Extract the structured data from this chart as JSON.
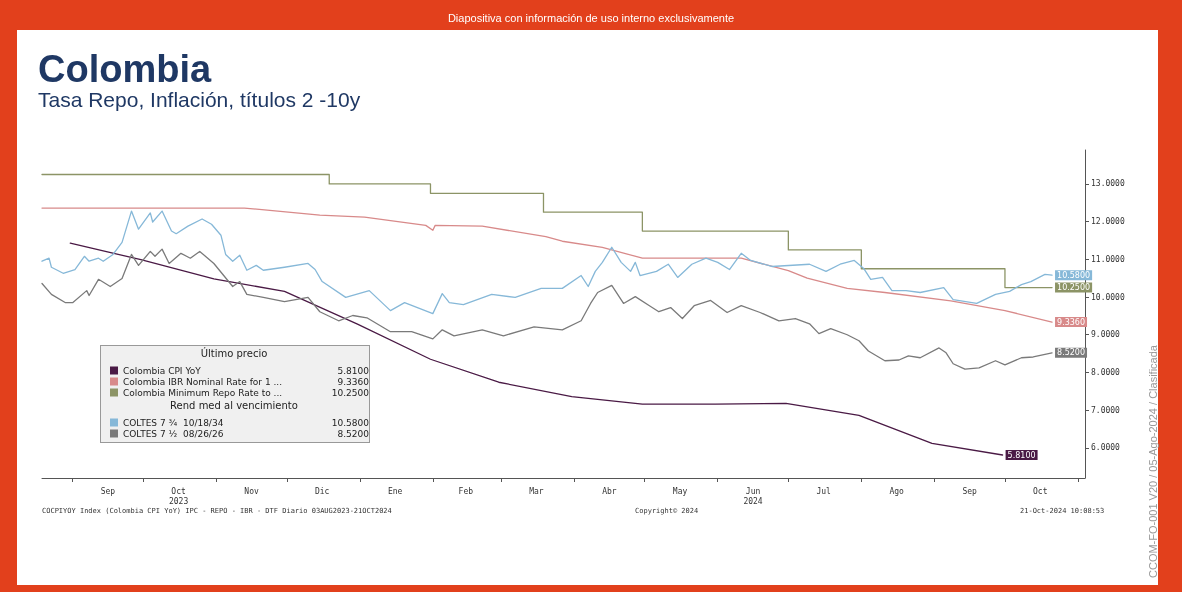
{
  "chart_data": {
    "type": "line",
    "title": "Colombia",
    "subtitle": "Tasa Repo, Inflación, títulos 2 -10y",
    "legend_title": "Último precio",
    "legend": "bottom left",
    "grid": false,
    "marker": "none",
    "line_style": "solid",
    "annotations": [
      "Rend med al vencimiento",
      "COCPIYOY Index (Colombia CPI YoY) IPC - REPO - IBR - DTF  Diario 03AUG2023-21OCT2024",
      "Copyright© 2024",
      "21-Oct-2024 10:08:53",
      "Diapositiva con información de uso interno exclusivamente",
      "CCOM-FO-001 V20 / 05-Ago-2024 / Clasificada"
    ],
    "xlim": [
      "2023-08-19",
      "2024-11-04"
    ],
    "xticks": [
      {
        "value": "2023-09-01",
        "label": null
      },
      {
        "value": "2023-09-16",
        "label": "Sep"
      },
      {
        "value": "2023-10-01",
        "label": null
      },
      {
        "value": "2023-10-16",
        "label": "Oct\n2023"
      },
      {
        "value": "2023-11-01",
        "label": null
      },
      {
        "value": "2023-11-16",
        "label": "Nov"
      },
      {
        "value": "2023-12-01",
        "label": null
      },
      {
        "value": "2023-12-16",
        "label": "Dic"
      },
      {
        "value": "2024-01-01",
        "label": null
      },
      {
        "value": "2024-01-16",
        "label": "Ene"
      },
      {
        "value": "2024-02-01",
        "label": null
      },
      {
        "value": "2024-02-15",
        "label": "Feb"
      },
      {
        "value": "2024-03-01",
        "label": null
      },
      {
        "value": "2024-03-16",
        "label": "Mar"
      },
      {
        "value": "2024-04-01",
        "label": null
      },
      {
        "value": "2024-04-16",
        "label": "Abr"
      },
      {
        "value": "2024-05-01",
        "label": null
      },
      {
        "value": "2024-05-16",
        "label": "May"
      },
      {
        "value": "2024-06-01",
        "label": null
      },
      {
        "value": "2024-06-16",
        "label": "Jun\n2024"
      },
      {
        "value": "2024-07-01",
        "label": null
      },
      {
        "value": "2024-07-16",
        "label": "Jul"
      },
      {
        "value": "2024-08-01",
        "label": null
      },
      {
        "value": "2024-08-16",
        "label": "Ago"
      },
      {
        "value": "2024-09-01",
        "label": null
      },
      {
        "value": "2024-09-16",
        "label": "Sep"
      },
      {
        "value": "2024-10-01",
        "label": null
      },
      {
        "value": "2024-10-16",
        "label": "Oct"
      },
      {
        "value": "2024-11-01",
        "label": null
      }
    ],
    "ylim": [
      5.2,
      13.9
    ],
    "yticks": [
      {
        "value": 6,
        "label": "6.0000"
      },
      {
        "value": 7,
        "label": "7.0000"
      },
      {
        "value": 8,
        "label": "8.0000"
      },
      {
        "value": 9,
        "label": "9.0000"
      },
      {
        "value": 10,
        "label": "10.0000"
      },
      {
        "value": 11,
        "label": "11.0000"
      },
      {
        "value": 12,
        "label": "12.0000"
      },
      {
        "value": 13,
        "label": "13.0000"
      }
    ],
    "series": [
      {
        "name": "Colombia CPI YoY",
        "color": "#4a1a45",
        "x": [
          "2023-08-31",
          "2023-09-30",
          "2023-10-31",
          "2023-11-30",
          "2023-12-31",
          "2024-01-31",
          "2024-02-29",
          "2024-03-31",
          "2024-04-30",
          "2024-05-31",
          "2024-06-30",
          "2024-07-31",
          "2024-08-31",
          "2024-09-30"
        ],
        "values": [
          11.43,
          10.99,
          10.48,
          10.15,
          9.28,
          8.35,
          7.74,
          7.36,
          7.16,
          7.16,
          7.18,
          6.86,
          6.12,
          5.81
        ],
        "value_labels": [
          null,
          null,
          null,
          null,
          null,
          null,
          null,
          null,
          null,
          null,
          null,
          null,
          null,
          "5.8100"
        ]
      },
      {
        "name": "Colombia IBR Nominal Rate for 1 ...",
        "color": "#d88a8a",
        "x": [
          "2023-08-19",
          "2023-11-13",
          "2023-12-15",
          "2024-01-03",
          "2024-01-29",
          "2024-02-01",
          "2024-02-02",
          "2024-02-22",
          "2024-03-20",
          "2024-03-27",
          "2024-04-13",
          "2024-04-30",
          "2024-05-25",
          "2024-06-11",
          "2024-07-01",
          "2024-07-09",
          "2024-07-26",
          "2024-08-11",
          "2024-09-08",
          "2024-10-01",
          "2024-10-21"
        ],
        "values": [
          12.36,
          12.36,
          12.17,
          12.12,
          11.9,
          11.77,
          11.9,
          11.88,
          11.6,
          11.48,
          11.32,
          11.03,
          11.03,
          11.03,
          10.7,
          10.5,
          10.23,
          10.12,
          9.9,
          9.64,
          9.336
        ],
        "value_labels": [
          null,
          null,
          null,
          null,
          null,
          null,
          null,
          null,
          null,
          null,
          null,
          null,
          null,
          null,
          null,
          null,
          null,
          null,
          null,
          null,
          "9.3360"
        ]
      },
      {
        "name": "Colombia Minimum Repo Rate to ...",
        "type": "step",
        "color": "#8c9466",
        "x": [
          "2023-08-19",
          "2023-12-19",
          "2024-01-31",
          "2024-03-19",
          "2024-04-30",
          "2024-07-01",
          "2024-08-01",
          "2024-10-01",
          "2024-10-21"
        ],
        "values": [
          13.25,
          13.0,
          12.75,
          12.25,
          11.75,
          11.25,
          10.75,
          10.25,
          10.25
        ],
        "value_labels": [
          null,
          null,
          null,
          null,
          null,
          null,
          null,
          null,
          "10.2500"
        ]
      },
      {
        "name": "COLTES 7 ¾  10/18/34",
        "color": "#86b8d8",
        "x": [
          "2023-08-19",
          "2023-08-22",
          "2023-08-23",
          "2023-08-28",
          "2023-09-02",
          "2023-09-06",
          "2023-09-08",
          "2023-09-12",
          "2023-09-14",
          "2023-09-18",
          "2023-09-22",
          "2023-09-26",
          "2023-09-29",
          "2023-10-04",
          "2023-10-05",
          "2023-10-09",
          "2023-10-13",
          "2023-10-15",
          "2023-10-20",
          "2023-10-26",
          "2023-10-30",
          "2023-11-03",
          "2023-11-05",
          "2023-11-08",
          "2023-11-11",
          "2023-11-14",
          "2023-11-18",
          "2023-11-21",
          "2023-11-30",
          "2023-12-10",
          "2023-12-13",
          "2023-12-16",
          "2023-12-26",
          "2024-01-05",
          "2024-01-14",
          "2024-01-20",
          "2024-02-01",
          "2024-02-05",
          "2024-02-08",
          "2024-02-14",
          "2024-02-26",
          "2024-03-07",
          "2024-03-18",
          "2024-03-27",
          "2024-04-04",
          "2024-04-07",
          "2024-04-10",
          "2024-04-13",
          "2024-04-17",
          "2024-04-21",
          "2024-04-25",
          "2024-04-27",
          "2024-04-29",
          "2024-05-06",
          "2024-05-11",
          "2024-05-15",
          "2024-05-21",
          "2024-05-27",
          "2024-06-01",
          "2024-06-06",
          "2024-06-11",
          "2024-06-15",
          "2024-06-24",
          "2024-07-10",
          "2024-07-17",
          "2024-07-23",
          "2024-07-29",
          "2024-08-02",
          "2024-08-05",
          "2024-08-10",
          "2024-08-14",
          "2024-08-20",
          "2024-08-26",
          "2024-09-05",
          "2024-09-09",
          "2024-09-19",
          "2024-09-27",
          "2024-10-03",
          "2024-10-08",
          "2024-10-12",
          "2024-10-18",
          "2024-10-21"
        ],
        "values": [
          10.95,
          11.03,
          10.79,
          10.63,
          10.73,
          11.08,
          10.95,
          11.03,
          10.95,
          11.12,
          11.45,
          12.28,
          11.8,
          12.23,
          11.99,
          12.28,
          11.75,
          11.68,
          11.88,
          12.07,
          11.93,
          11.64,
          11.13,
          10.95,
          11.11,
          10.71,
          10.84,
          10.71,
          10.79,
          10.89,
          10.73,
          10.41,
          9.99,
          10.17,
          9.64,
          9.85,
          9.56,
          10.09,
          9.85,
          9.8,
          10.07,
          9.99,
          10.23,
          10.23,
          10.57,
          10.28,
          10.68,
          10.92,
          11.32,
          10.92,
          10.68,
          10.92,
          10.57,
          10.68,
          10.87,
          10.52,
          10.87,
          11.03,
          10.92,
          10.73,
          11.16,
          10.97,
          10.81,
          10.87,
          10.68,
          10.87,
          10.97,
          10.76,
          10.47,
          10.52,
          10.17,
          10.17,
          10.12,
          10.25,
          9.93,
          9.83,
          10.07,
          10.15,
          10.33,
          10.41,
          10.6,
          10.58
        ],
        "value_labels": [
          null,
          null,
          null,
          null,
          null,
          null,
          null,
          null,
          null,
          null,
          null,
          null,
          null,
          null,
          null,
          null,
          null,
          null,
          null,
          null,
          null,
          null,
          null,
          null,
          null,
          null,
          null,
          null,
          null,
          null,
          null,
          null,
          null,
          null,
          null,
          null,
          null,
          null,
          null,
          null,
          null,
          null,
          null,
          null,
          null,
          null,
          null,
          null,
          null,
          null,
          null,
          null,
          null,
          null,
          null,
          null,
          null,
          null,
          null,
          null,
          null,
          null,
          null,
          null,
          null,
          null,
          null,
          null,
          null,
          null,
          null,
          null,
          null,
          null,
          null,
          null,
          null,
          null,
          null,
          null,
          null,
          "10.5800"
        ]
      },
      {
        "name": "COLTES 7 ½  08/26/26",
        "color": "#7a7a7a",
        "x": [
          "2023-08-19",
          "2023-08-23",
          "2023-08-29",
          "2023-09-01",
          "2023-09-07",
          "2023-09-08",
          "2023-09-12",
          "2023-09-17",
          "2023-09-22",
          "2023-09-26",
          "2023-09-29",
          "2023-10-04",
          "2023-10-06",
          "2023-10-09",
          "2023-10-12",
          "2023-10-17",
          "2023-10-21",
          "2023-10-25",
          "2023-10-31",
          "2023-11-08",
          "2023-11-11",
          "2023-11-14",
          "2023-11-21",
          "2023-11-30",
          "2023-12-10",
          "2023-12-15",
          "2023-12-23",
          "2023-12-29",
          "2024-01-04",
          "2024-01-14",
          "2024-01-23",
          "2024-02-01",
          "2024-02-05",
          "2024-02-10",
          "2024-02-22",
          "2024-03-02",
          "2024-03-15",
          "2024-03-27",
          "2024-04-04",
          "2024-04-08",
          "2024-04-11",
          "2024-04-17",
          "2024-04-22",
          "2024-04-27",
          "2024-05-03",
          "2024-05-07",
          "2024-05-12",
          "2024-05-17",
          "2024-05-22",
          "2024-05-29",
          "2024-06-05",
          "2024-06-11",
          "2024-06-19",
          "2024-06-27",
          "2024-07-04",
          "2024-07-10",
          "2024-07-14",
          "2024-07-19",
          "2024-07-26",
          "2024-07-31",
          "2024-08-04",
          "2024-08-11",
          "2024-08-17",
          "2024-08-21",
          "2024-08-26",
          "2024-09-03",
          "2024-09-06",
          "2024-09-09",
          "2024-09-14",
          "2024-09-20",
          "2024-09-27",
          "2024-10-01",
          "2024-10-08",
          "2024-10-13",
          "2024-10-21"
        ],
        "values": [
          10.36,
          10.07,
          9.85,
          9.85,
          10.17,
          10.04,
          10.47,
          10.28,
          10.49,
          11.13,
          10.84,
          11.21,
          11.08,
          11.27,
          10.89,
          11.16,
          11.03,
          11.21,
          10.89,
          10.28,
          10.41,
          10.07,
          9.99,
          9.88,
          9.99,
          9.61,
          9.37,
          9.51,
          9.45,
          9.08,
          9.08,
          8.89,
          9.13,
          8.97,
          9.13,
          8.97,
          9.21,
          9.13,
          9.37,
          9.83,
          10.12,
          10.31,
          9.83,
          10.01,
          9.77,
          9.61,
          9.72,
          9.43,
          9.77,
          9.91,
          9.59,
          9.77,
          9.59,
          9.37,
          9.43,
          9.29,
          9.03,
          9.16,
          9.0,
          8.84,
          8.57,
          8.31,
          8.33,
          8.44,
          8.39,
          8.65,
          8.52,
          8.23,
          8.09,
          8.12,
          8.31,
          8.2,
          8.39,
          8.41,
          8.52
        ],
        "value_labels": [
          null,
          null,
          null,
          null,
          null,
          null,
          null,
          null,
          null,
          null,
          null,
          null,
          null,
          null,
          null,
          null,
          null,
          null,
          null,
          null,
          null,
          null,
          null,
          null,
          null,
          null,
          null,
          null,
          null,
          null,
          null,
          null,
          null,
          null,
          null,
          null,
          null,
          null,
          null,
          null,
          null,
          null,
          null,
          null,
          null,
          null,
          null,
          null,
          null,
          null,
          null,
          null,
          null,
          null,
          null,
          null,
          null,
          null,
          null,
          null,
          null,
          null,
          null,
          null,
          null,
          null,
          null,
          null,
          null,
          null,
          null,
          null,
          null,
          null,
          "8.5200"
        ]
      }
    ]
  }
}
